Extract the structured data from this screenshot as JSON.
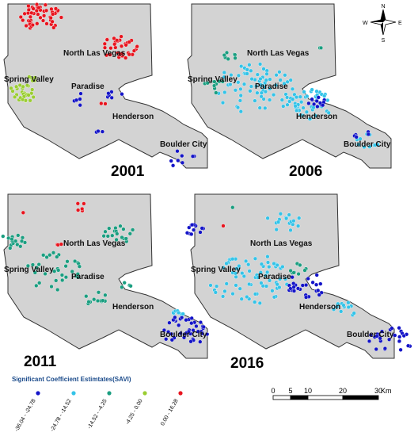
{
  "panels": [
    {
      "year": "2001",
      "places": [
        "North Las Vegas",
        "Spring Valley",
        "Paradise",
        "Henderson",
        "Boulder City"
      ]
    },
    {
      "year": "2006",
      "places": [
        "North Las Vegas",
        "Spring Valley",
        "Paradise",
        "Henderson",
        "Boulder City"
      ]
    },
    {
      "year": "2011",
      "places": [
        "North Las Vegas",
        "Spring Valley",
        "Paradise",
        "Henderson",
        "Boulder City"
      ]
    },
    {
      "year": "2016",
      "places": [
        "North Las Vegas",
        "Spring Valley",
        "Paradise",
        "Henderson",
        "Boulder City"
      ]
    }
  ],
  "legend": {
    "title": "Significant Coefficient Estimtates(SAVI)",
    "items": [
      {
        "label": "-36.04 - -24.78",
        "color": "#1414c8"
      },
      {
        "label": "-24.78 - -14.52",
        "color": "#33c3e8"
      },
      {
        "label": "-14.52 - -4.25",
        "color": "#1a9e80"
      },
      {
        "label": "-4.25 - 0.00",
        "color": "#9acd32"
      },
      {
        "label": "0.00 - 16.28",
        "color": "#e8141e"
      }
    ]
  },
  "scale": {
    "ticks": [
      "0",
      "5",
      "10",
      "20",
      "30"
    ],
    "unit": "Km"
  },
  "compass": {
    "n": "N",
    "s": "S",
    "e": "E",
    "w": "W"
  }
}
